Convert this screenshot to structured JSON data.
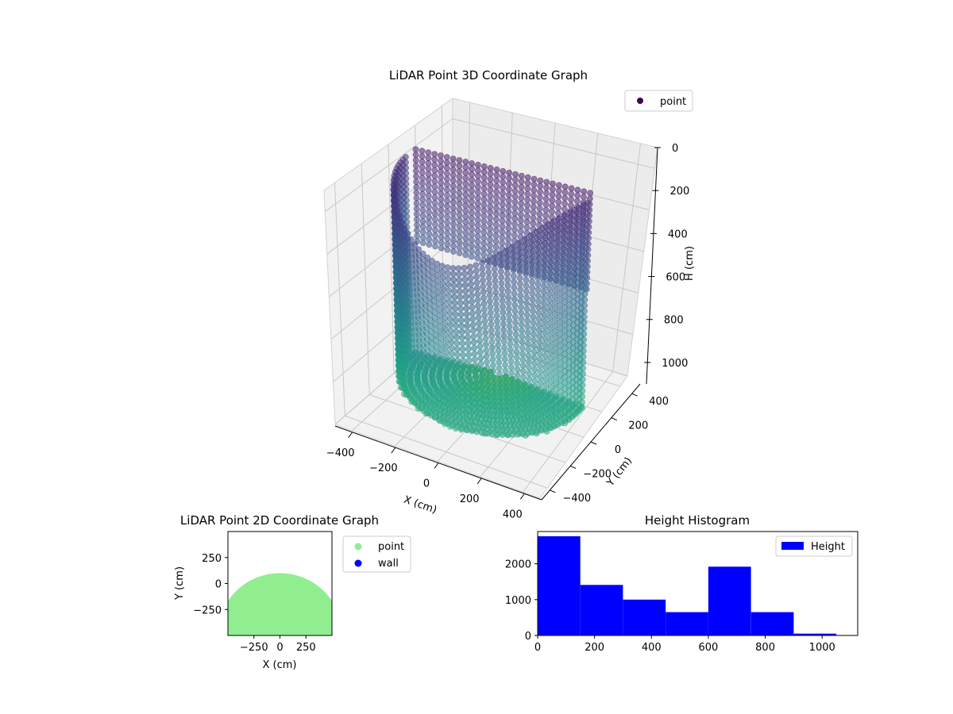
{
  "chart_data": [
    {
      "type": "scatter",
      "projection": "3d",
      "title": "LiDAR Point 3D Coordinate Graph",
      "xlabel": "X (cm)",
      "ylabel": "Y (cm)",
      "zlabel": "H (cm)",
      "xticks": [
        -400,
        -200,
        0,
        200,
        400
      ],
      "yticks": [
        -400,
        -200,
        0,
        200,
        400
      ],
      "zticks": [
        0,
        200,
        400,
        600,
        800,
        1000
      ],
      "xlim": [
        -480,
        480
      ],
      "ylim": [
        -480,
        480
      ],
      "zlim": [
        1100,
        0
      ],
      "grid": true,
      "legend": {
        "placement": "top-right",
        "entries": [
          {
            "label": "point",
            "color": "#440154"
          }
        ]
      },
      "colormap": "viridis",
      "shape": {
        "description_free": true,
        "x_range": [
          -460,
          460
        ],
        "y_range": [
          -460,
          100
        ],
        "h_range": [
          0,
          1050
        ]
      }
    },
    {
      "type": "scatter",
      "title": "LiDAR Point 2D Coordinate Graph",
      "xlabel": "X (cm)",
      "ylabel": "Y (cm)",
      "xticks": [
        -250,
        0,
        250
      ],
      "yticks": [
        250,
        0,
        -250
      ],
      "xlim": [
        -500,
        500
      ],
      "ylim": [
        -500,
        500
      ],
      "legend": {
        "placement": "outside-right",
        "entries": [
          {
            "label": "point",
            "color": "#90ee90"
          },
          {
            "label": "wall",
            "color": "#0000ff"
          }
        ]
      },
      "series": [
        {
          "name": "point",
          "color": "#90ee90",
          "extent_x": [
            -500,
            500
          ],
          "extent_y": [
            -500,
            100
          ]
        },
        {
          "name": "wall",
          "color": "#0000ff",
          "values": []
        }
      ]
    },
    {
      "type": "bar",
      "title": "Height Histogram",
      "xticks": [
        0,
        200,
        400,
        600,
        800,
        1000
      ],
      "yticks": [
        0,
        1000,
        2000
      ],
      "xlim": [
        0,
        1125
      ],
      "ylim": [
        0,
        2900
      ],
      "legend": {
        "placement": "top-right",
        "entries": [
          {
            "label": "Height",
            "color": "#0000ff"
          }
        ]
      },
      "bins": [
        [
          0,
          150
        ],
        [
          150,
          300
        ],
        [
          300,
          450
        ],
        [
          450,
          600
        ],
        [
          600,
          750
        ],
        [
          750,
          900
        ],
        [
          900,
          1050
        ]
      ],
      "values": [
        2770,
        1410,
        1000,
        650,
        1920,
        650,
        50
      ],
      "color": "#0000ff"
    }
  ]
}
